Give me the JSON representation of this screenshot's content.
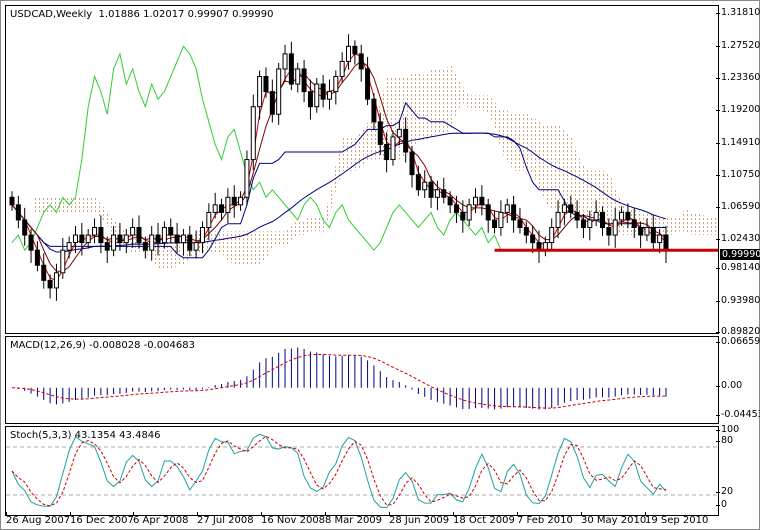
{
  "window": {
    "symbol": "USDCAD",
    "timeframe": "Weekly",
    "title": "USDCAD,Weekly",
    "ohlc_text": "1.01886 1.02017 0.99907 0.99990"
  },
  "main_axis": {
    "ticks": [
      "1.31810",
      "1.27520",
      "1.23360",
      "1.19200",
      "1.14910",
      "1.10750",
      "1.06590",
      "1.02430",
      "0.98140",
      "0.93980",
      "0.89820"
    ],
    "current_price": "0.99990"
  },
  "macd": {
    "label": "MACD(12,26,9) -0.008028 -0.004683",
    "ticks": [
      "0.066593",
      "0.00",
      "-0.04453"
    ]
  },
  "stoch": {
    "label": "Stoch(5,3,3) 43.1354 43.4846",
    "ticks": [
      "100",
      "80",
      "20",
      "0"
    ]
  },
  "time_axis": {
    "labels": [
      "26 Aug 2007",
      "16 Dec 2007",
      "6 Apr 2008",
      "27 Jul 2008",
      "16 Nov 2008",
      "8 Mar 2009",
      "28 Jun 2009",
      "18 Oct 2009",
      "7 Feb 2010",
      "30 May 2010",
      "19 Sep 2010"
    ]
  },
  "colors": {
    "candle": "#000000",
    "tenkan": "#cc0000",
    "kijun": "#000080",
    "chikou": "#33cc33",
    "cloud": "#d2a27a",
    "cloud_alt": "#c8b0c8",
    "support_line": "#cc0000",
    "macd_hist": "#000080",
    "macd_signal": "#cc0000",
    "stoch_main": "#20a0a0",
    "stoch_signal": "#cc0000"
  },
  "chart_data": {
    "type": "candlestick",
    "title": "USDCAD,Weekly",
    "x_labels": [
      "26 Aug 2007",
      "16 Dec 2007",
      "6 Apr 2008",
      "27 Jul 2008",
      "16 Nov 2008",
      "8 Mar 2009",
      "28 Jun 2009",
      "18 Oct 2009",
      "7 Feb 2010",
      "30 May 2010",
      "19 Sep 2010"
    ],
    "ylim": [
      0.8982,
      1.3181
    ],
    "last_ohlc": {
      "open": 1.01886,
      "high": 1.02017,
      "low": 0.99907,
      "close": 0.9999
    },
    "support_level": 0.9999,
    "approx_close_series": [
      1.06,
      1.04,
      1.02,
      1.0,
      0.98,
      0.96,
      0.95,
      0.97,
      1.0,
      1.01,
      1.02,
      1.01,
      1.02,
      1.03,
      1.01,
      1.0,
      1.02,
      1.01,
      1.02,
      1.03,
      1.01,
      1.0,
      1.02,
      1.01,
      1.03,
      1.02,
      1.01,
      1.02,
      1.0,
      1.01,
      1.03,
      1.05,
      1.06,
      1.05,
      1.07,
      1.06,
      1.07,
      1.12,
      1.19,
      1.23,
      1.21,
      1.18,
      1.24,
      1.26,
      1.22,
      1.24,
      1.21,
      1.19,
      1.22,
      1.2,
      1.21,
      1.23,
      1.25,
      1.27,
      1.26,
      1.24,
      1.2,
      1.17,
      1.14,
      1.12,
      1.15,
      1.16,
      1.13,
      1.1,
      1.08,
      1.09,
      1.07,
      1.08,
      1.07,
      1.06,
      1.05,
      1.04,
      1.06,
      1.07,
      1.06,
      1.04,
      1.03,
      1.05,
      1.06,
      1.04,
      1.03,
      1.02,
      1.01,
      1.0,
      1.01,
      1.03,
      1.05,
      1.06,
      1.05,
      1.04,
      1.03,
      1.04,
      1.05,
      1.03,
      1.02,
      1.04,
      1.05,
      1.04,
      1.03,
      1.02,
      1.03,
      1.01,
      1.02,
      1.0
    ],
    "indicators": {
      "ichimoku": [
        "tenkan-sen (red)",
        "kijun-sen (navy)",
        "chikou span (green)",
        "kumo cloud (dotted)"
      ],
      "macd": {
        "params": "12,26,9",
        "main": -0.008028,
        "signal": -0.004683,
        "ylim": [
          -0.04453,
          0.066593
        ]
      },
      "stochastic": {
        "params": "5,3,3",
        "k": 43.1354,
        "d": 43.4846,
        "levels": [
          20,
          80
        ],
        "ylim": [
          0,
          100
        ]
      }
    }
  }
}
